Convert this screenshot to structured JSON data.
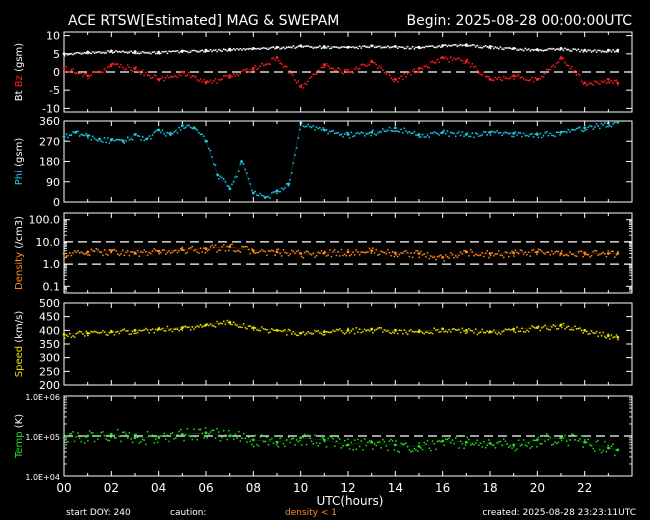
{
  "header": {
    "title": "ACE RTSW[Estimated] MAG & SWEPAM",
    "begin": "Begin: 2025-08-28 00:00:00UTC"
  },
  "footer": {
    "start_doy": "start DOY: 240",
    "caution": "caution:",
    "density_note": "density < 1",
    "created": "created: 2025-08-28 23:23:11UTC"
  },
  "xaxis": {
    "label": "UTC(hours)",
    "ticks": [
      "00",
      "02",
      "04",
      "06",
      "08",
      "10",
      "12",
      "14",
      "16",
      "18",
      "20",
      "22"
    ],
    "range": [
      0,
      24
    ]
  },
  "colors": {
    "background": "#000000",
    "axis": "#ffffff",
    "bt": "#ffffff",
    "bz": "#ff2020",
    "phi": "#22c8e6",
    "density": "#ff8c1a",
    "speed": "#e8e000",
    "temp": "#22e022"
  },
  "chart_data": [
    {
      "type": "scatter",
      "panel": "mag_b",
      "ylabel_parts": [
        "Bt",
        "Bz",
        "(gsm)"
      ],
      "yticks": [
        "10",
        "5",
        "0",
        "-5",
        "-10"
      ],
      "ylim": [
        -11,
        11
      ],
      "scale": "linear",
      "dashed_lines": [
        0
      ],
      "series": [
        {
          "name": "Bt",
          "x": [
            0,
            1,
            2,
            3,
            4,
            5,
            6,
            7,
            8,
            9,
            10,
            11,
            12,
            13,
            14,
            15,
            16,
            17,
            18,
            19,
            20,
            21,
            22,
            23,
            23.4
          ],
          "values": [
            5.0,
            5.5,
            5.8,
            5.6,
            5.5,
            5.8,
            6.0,
            6.3,
            6.5,
            6.8,
            7.2,
            7.0,
            6.8,
            7.2,
            7.0,
            6.8,
            7.3,
            7.5,
            7.0,
            6.5,
            6.2,
            6.5,
            6.0,
            6.0,
            6.0
          ]
        },
        {
          "name": "Bz",
          "x": [
            0,
            1,
            2,
            3,
            4,
            5,
            6,
            7,
            8,
            9,
            10,
            11,
            12,
            13,
            14,
            15,
            16,
            17,
            18,
            19,
            20,
            21,
            22,
            23,
            23.4
          ],
          "values": [
            1.0,
            -1.0,
            2.0,
            1.0,
            -2.0,
            0.0,
            -3.0,
            -1.0,
            1.0,
            4.0,
            -4.0,
            2.0,
            0.0,
            3.0,
            -2.0,
            1.0,
            4.0,
            3.0,
            -2.0,
            -1.0,
            -2.0,
            4.0,
            -3.0,
            -2.0,
            -3.0
          ]
        }
      ]
    },
    {
      "type": "scatter",
      "panel": "phi",
      "ylabel_parts": [
        "Phi",
        "(gsm)"
      ],
      "yticks": [
        "360",
        "270",
        "180",
        "90",
        "0"
      ],
      "ylim": [
        0,
        360
      ],
      "scale": "linear",
      "dashed_lines": [],
      "series": [
        {
          "name": "Phi",
          "x": [
            0,
            0.5,
            1,
            1.5,
            2,
            2.5,
            3,
            3.5,
            4,
            4.5,
            5,
            5.5,
            6,
            6.5,
            7,
            7.5,
            8,
            8.5,
            9,
            9.5,
            10,
            11,
            12,
            13,
            14,
            15,
            16,
            17,
            18,
            19,
            20,
            21,
            22,
            23,
            23.4
          ],
          "values": [
            290,
            310,
            295,
            280,
            275,
            270,
            300,
            280,
            320,
            300,
            340,
            330,
            270,
            120,
            60,
            180,
            40,
            20,
            50,
            80,
            350,
            320,
            300,
            310,
            330,
            300,
            310,
            300,
            310,
            305,
            300,
            310,
            330,
            350,
            355
          ]
        }
      ]
    },
    {
      "type": "scatter",
      "panel": "density",
      "ylabel_parts": [
        "Density",
        "(/cm3)"
      ],
      "yticks": [
        "100.0",
        "10.0",
        "1.0",
        "0.1"
      ],
      "ylim": [
        0.05,
        200
      ],
      "scale": "log",
      "dashed_lines": [
        10,
        1
      ],
      "series": [
        {
          "name": "Density",
          "x": [
            0,
            1,
            2,
            3,
            4,
            5,
            6,
            7,
            8,
            9,
            10,
            11,
            12,
            13,
            14,
            15,
            16,
            17,
            18,
            19,
            20,
            21,
            22,
            23,
            23.4
          ],
          "values": [
            3.0,
            3.5,
            4.0,
            3.2,
            3.8,
            4.5,
            5.0,
            6.0,
            4.0,
            3.5,
            3.0,
            3.2,
            3.5,
            4.0,
            3.2,
            3.0,
            2.0,
            3.5,
            3.0,
            3.2,
            3.5,
            3.0,
            3.2,
            3.0,
            3.0
          ]
        }
      ]
    },
    {
      "type": "scatter",
      "panel": "speed",
      "ylabel_parts": [
        "Speed",
        "(km/s)"
      ],
      "yticks": [
        "500",
        "450",
        "400",
        "350",
        "300",
        "250",
        "200"
      ],
      "ylim": [
        200,
        500
      ],
      "scale": "linear",
      "dashed_lines": [],
      "series": [
        {
          "name": "Speed",
          "x": [
            0,
            1,
            2,
            3,
            4,
            5,
            6,
            7,
            8,
            9,
            10,
            11,
            12,
            13,
            14,
            15,
            16,
            17,
            18,
            19,
            20,
            21,
            22,
            23,
            23.4
          ],
          "values": [
            385,
            390,
            395,
            400,
            405,
            410,
            420,
            430,
            410,
            400,
            390,
            395,
            400,
            405,
            400,
            395,
            405,
            400,
            395,
            405,
            410,
            420,
            400,
            380,
            375
          ]
        }
      ]
    },
    {
      "type": "scatter",
      "panel": "temp",
      "ylabel_parts": [
        "Temp",
        "(K)"
      ],
      "yticks": [
        "1.0E+06",
        "1.0E+05",
        "1.0E+04"
      ],
      "ylim": [
        10000,
        1000000
      ],
      "scale": "log",
      "dashed_lines": [
        100000
      ],
      "series": [
        {
          "name": "Temp",
          "x": [
            0,
            1,
            2,
            3,
            4,
            5,
            6,
            7,
            8,
            9,
            10,
            11,
            12,
            13,
            14,
            15,
            16,
            17,
            18,
            19,
            20,
            21,
            22,
            23,
            23.4
          ],
          "values": [
            90000,
            100000,
            110000,
            90000,
            95000,
            110000,
            120000,
            100000,
            80000,
            70000,
            90000,
            80000,
            60000,
            70000,
            60000,
            55000,
            75000,
            70000,
            65000,
            60000,
            80000,
            90000,
            70000,
            50000,
            45000
          ]
        }
      ]
    }
  ]
}
